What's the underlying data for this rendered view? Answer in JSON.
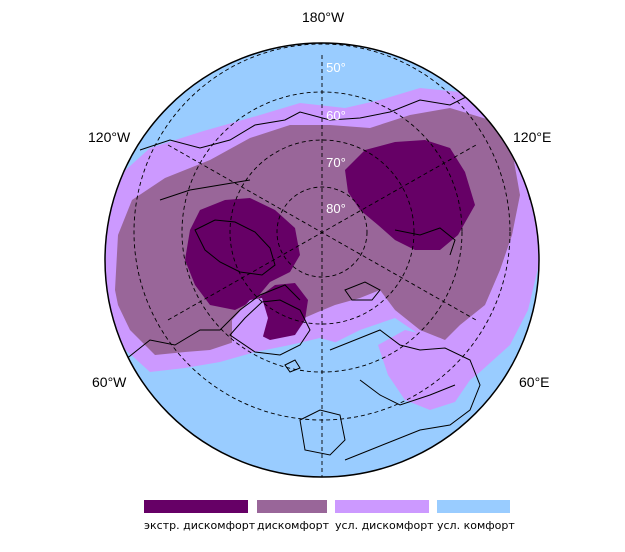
{
  "map": {
    "projection": "north polar stereographic",
    "colors": {
      "extreme_discomfort": "#660066",
      "discomfort": "#996699",
      "conditional_discomfort": "#cc99ff",
      "conditional_comfort": "#99ccff",
      "coastline": "#000000",
      "graticule": "#000000"
    },
    "longitude_labels": {
      "top": "180°W",
      "upper_left": "120°W",
      "upper_right": "120°E",
      "lower_left": "60°W",
      "lower_right": "60°E"
    },
    "latitude_labels": [
      "50°",
      "60°",
      "70°",
      "80°"
    ]
  },
  "legend": [
    {
      "label": "экстр. дискомфорт",
      "color": "#660066"
    },
    {
      "label": "дискомфорт",
      "color": "#996699"
    },
    {
      "label": "усл. дискомфорт",
      "color": "#cc99ff"
    },
    {
      "label": "усл. комфорт",
      "color": "#99ccff"
    }
  ]
}
